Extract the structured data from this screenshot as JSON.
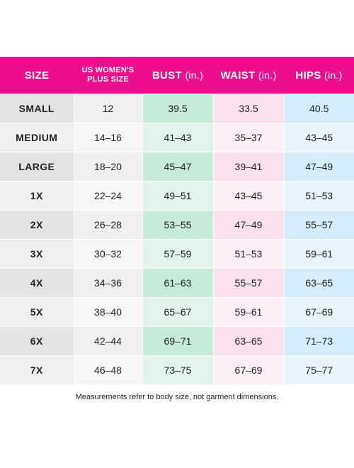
{
  "table": {
    "headers": {
      "size": "SIZE",
      "us_line1": "US WOMEN'S",
      "us_line2": "PLUS SIZE",
      "bust": "BUST",
      "waist": "WAIST",
      "hips": "HIPS",
      "unit": "(in.)"
    },
    "rows": [
      {
        "size": "SMALL",
        "us": "12",
        "bust": "39.5",
        "waist": "33.5",
        "hips": "40.5"
      },
      {
        "size": "MEDIUM",
        "us": "14–16",
        "bust": "41–43",
        "waist": "35–37",
        "hips": "43–45"
      },
      {
        "size": "LARGE",
        "us": "18–20",
        "bust": "45–47",
        "waist": "39–41",
        "hips": "47–49"
      },
      {
        "size": "1X",
        "us": "22–24",
        "bust": "49–51",
        "waist": "43–45",
        "hips": "51–53"
      },
      {
        "size": "2X",
        "us": "26–28",
        "bust": "53–55",
        "waist": "47–49",
        "hips": "55–57"
      },
      {
        "size": "3X",
        "us": "30–32",
        "bust": "57–59",
        "waist": "51–53",
        "hips": "59–61"
      },
      {
        "size": "4X",
        "us": "34–36",
        "bust": "61–63",
        "waist": "55–57",
        "hips": "63–65"
      },
      {
        "size": "5X",
        "us": "38–40",
        "bust": "65–67",
        "waist": "59–61",
        "hips": "67–69"
      },
      {
        "size": "6X",
        "us": "42–44",
        "bust": "69–71",
        "waist": "63–65",
        "hips": "71–73"
      },
      {
        "size": "7X",
        "us": "46–48",
        "bust": "73–75",
        "waist": "67–69",
        "hips": "75–77"
      }
    ]
  },
  "footnote": "Measurements refer to body size, not garment dimensions.",
  "colors": {
    "header": "#ec0e8c",
    "bust": "#c6ecd9",
    "waist": "#fbe0ef",
    "hips": "#d5edfa"
  }
}
